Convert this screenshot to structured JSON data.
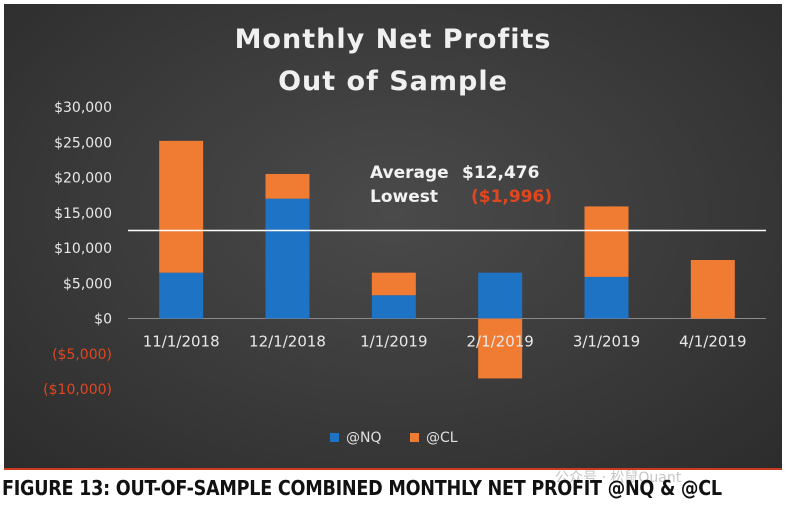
{
  "chart_data": {
    "type": "bar",
    "stacked": true,
    "title_line1": "Monthly  Net Profits",
    "title_line2": "Out of Sample",
    "categories": [
      "11/1/2018",
      "12/1/2018",
      "1/1/2019",
      "2/1/2019",
      "3/1/2019",
      "4/1/2019"
    ],
    "series": [
      {
        "name": "@NQ",
        "color": "#1f73c4",
        "values": [
          6500,
          17000,
          3300,
          6500,
          5900,
          0
        ]
      },
      {
        "name": "@CL",
        "color": "#f07b33",
        "values": [
          18700,
          3500,
          3200,
          -8500,
          10000,
          8300
        ]
      }
    ],
    "ylim": [
      -10000,
      30000
    ],
    "y_ticks": [
      {
        "value": 30000,
        "label": "$30,000",
        "negative": false
      },
      {
        "value": 25000,
        "label": "$25,000",
        "negative": false
      },
      {
        "value": 20000,
        "label": "$20,000",
        "negative": false
      },
      {
        "value": 15000,
        "label": "$15,000",
        "negative": false
      },
      {
        "value": 10000,
        "label": "$10,000",
        "negative": false
      },
      {
        "value": 5000,
        "label": "$5,000",
        "negative": false
      },
      {
        "value": 0,
        "label": "$0",
        "negative": false
      },
      {
        "value": -5000,
        "label": "($5,000)",
        "negative": true
      },
      {
        "value": -10000,
        "label": "($10,000)",
        "negative": true
      }
    ],
    "average_line_value": 12476,
    "annotation": {
      "average_label": "Average",
      "average_value": "$12,476",
      "lowest_label": "Lowest",
      "lowest_value": "($1,996)"
    },
    "legend_position": "bottom"
  },
  "colors": {
    "positive_label": "#e8e8e8",
    "negative_label": "#e0471f",
    "average_line": "#ffffff"
  },
  "caption": "FIGURE 13: OUT-OF-SAMPLE COMBINED MONTHLY NET PROFIT @NQ & @CL",
  "watermark": "公众号 · 松鼠Quant"
}
